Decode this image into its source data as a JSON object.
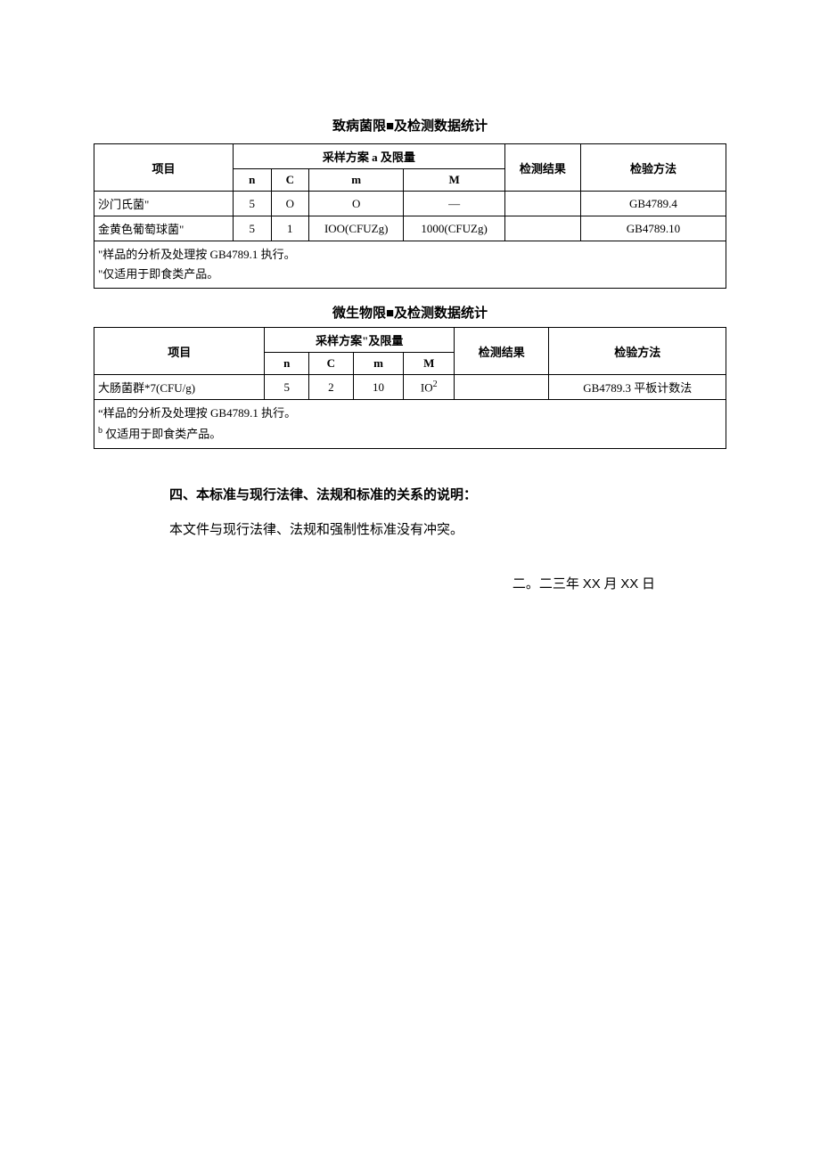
{
  "table1": {
    "title": "致病菌限■及检测数据统计",
    "headers": {
      "item": "项目",
      "plan": "采样方案 a 及限量",
      "n": "n",
      "c": "C",
      "m": "m",
      "M": "M",
      "result": "检测结果",
      "method": "检验方法"
    },
    "rows": [
      {
        "item": "沙门氏菌\"",
        "n": "5",
        "c": "O",
        "m": "O",
        "M": "—",
        "result": "",
        "method": "GB4789.4"
      },
      {
        "item": "金黄色葡萄球菌\"",
        "n": "5",
        "c": "1",
        "m": "IOO(CFUZg)",
        "M": "1000(CFUZg)",
        "result": "",
        "method": "GB4789.10"
      }
    ],
    "note1": "\"样品的分析及处理按 GB4789.1 执行。",
    "note2": "\"仅适用于即食类产品。",
    "colwidths": [
      "22%",
      "6%",
      "6%",
      "15%",
      "16%",
      "12%",
      "23%"
    ]
  },
  "table2": {
    "title": "微生物限■及检测数据统计",
    "headers": {
      "item": "项目",
      "plan": "采样方案\"及限量",
      "n": "n",
      "c": "C",
      "m": "m",
      "M": "M",
      "result": "检测结果",
      "method": "检验方法"
    },
    "rows": [
      {
        "item": "大肠菌群*7(CFU/g)",
        "n": "5",
        "c": "2",
        "m": "10",
        "M_html": "IO<sup>2</sup>",
        "result": "",
        "method": "GB4789.3 平板计数法"
      }
    ],
    "note1": "“样品的分析及处理按 GB4789.1 执行。",
    "note2_prefix": "b",
    "note2": " 仅适用于即食类产品。",
    "colwidths": [
      "27%",
      "7%",
      "7%",
      "8%",
      "8%",
      "15%",
      "28%"
    ]
  },
  "section": {
    "heading": "四、本标准与现行法律、法规和标准的关系的说明：",
    "body": "本文件与现行法律、法规和强制性标准没有冲突。",
    "date_cn1": "二。二三年 ",
    "date_xx1": "XX",
    "date_cn2": " 月 ",
    "date_xx2": "XX",
    "date_cn3": " 日"
  }
}
